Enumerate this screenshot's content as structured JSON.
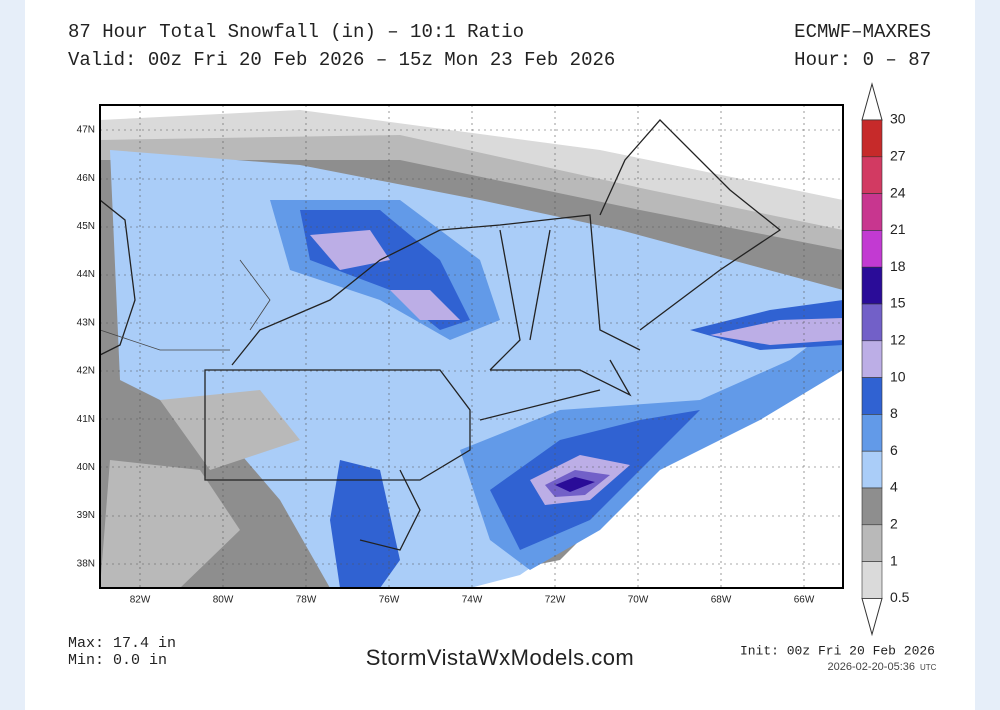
{
  "header": {
    "title": "87 Hour Total Snowfall (in) – 10:1 Ratio",
    "valid": "Valid: 00z Fri 20 Feb 2026 – 15z Mon 23 Feb 2026",
    "model": "ECMWF–MAXRES",
    "hours": "Hour: 0 – 87"
  },
  "map": {
    "lat_labels": [
      "47N",
      "46N",
      "45N",
      "44N",
      "43N",
      "42N",
      "41N",
      "40N",
      "39N",
      "38N"
    ],
    "lon_labels": [
      "82W",
      "80W",
      "78W",
      "76W",
      "74W",
      "72W",
      "70W",
      "68W",
      "66W"
    ]
  },
  "legend": {
    "levels": [
      30,
      27,
      24,
      21,
      18,
      15,
      12,
      10,
      8,
      6,
      4,
      2,
      1,
      0.5
    ],
    "colors": [
      "#c62a2a",
      "#d23a62",
      "#c8368f",
      "#c23ad2",
      "#2a0c98",
      "#7260c8",
      "#bcaee6",
      "#3062d2",
      "#629ae8",
      "#aacdf8",
      "#8e8e8e",
      "#b9b9b9",
      "#dadada"
    ]
  },
  "footer": {
    "max": "Max: 17.4 in",
    "min": "Min: 0.0 in",
    "site": "StormVistaWxModels.com",
    "init": "Init: 00z Fri 20 Feb 2026",
    "timestamp": "2026-02-20-05:36",
    "utc": "UTC"
  }
}
